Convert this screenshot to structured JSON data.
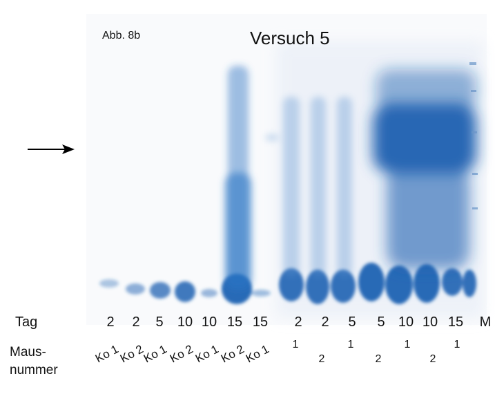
{
  "header": {
    "figure": "Abb. 8b",
    "title": "Versuch 5"
  },
  "lanes": {
    "day_label": "Tag",
    "days": [
      "2",
      "2",
      "5",
      "10",
      "10",
      "15",
      "15",
      "2",
      "2",
      "5",
      "5",
      "10",
      "10",
      "15",
      "M"
    ],
    "mouse_label": [
      "Maus-",
      "nummer"
    ],
    "mice": [
      "Ko 1",
      "Ko 2",
      "Ko 1",
      "Ko 2",
      "Ko 1",
      "Ko 2",
      "Ko 1",
      "1",
      "2",
      "1",
      "2",
      "1",
      "2",
      "1"
    ]
  }
}
